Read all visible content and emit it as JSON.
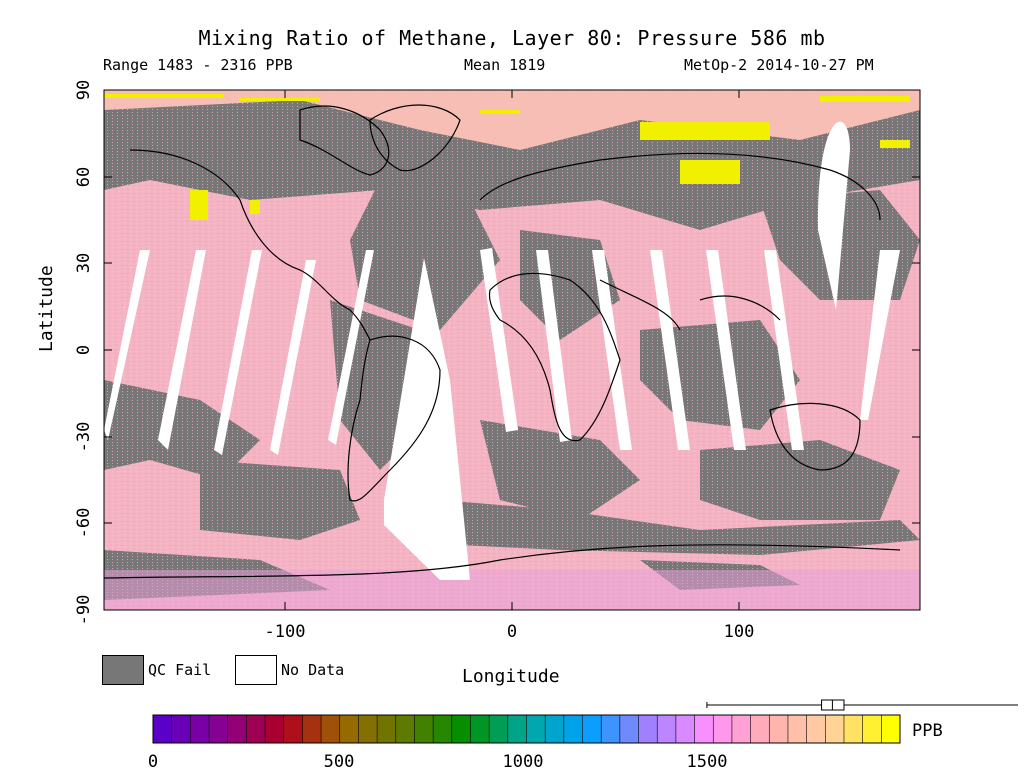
{
  "header": {
    "title": "Mixing Ratio of Methane, Layer 80: Pressure 586 mb",
    "range": "Range 1483 - 2316 PPB",
    "mean": "Mean 1819",
    "source": "MetOp-2 2014-10-27 PM"
  },
  "axes": {
    "ylabel": "Latitude",
    "xlabel": "Longitude",
    "yticks": [
      "90",
      "60",
      "30",
      "0",
      "-30",
      "-60",
      "-90"
    ],
    "xticks": [
      "-100",
      "0",
      "100"
    ]
  },
  "legend": {
    "qc_fail": "QC Fail",
    "no_data": "No Data",
    "qc_color": "#777777",
    "no_data_color": "#ffffff"
  },
  "colorbar": {
    "labels": [
      "0",
      "500",
      "1000",
      "1500"
    ],
    "unit": "PPB",
    "range": [
      0,
      2000
    ],
    "stops": [
      "#5a00c8",
      "#8a0090",
      "#b00020",
      "#9a6a00",
      "#5f7a00",
      "#009000",
      "#00a8a0",
      "#00a0ff",
      "#a080ff",
      "#ff90ff",
      "#ffb0b0",
      "#ffd0a0",
      "#ffff00"
    ]
  },
  "colors": {
    "field_pink": "#f4b4c4",
    "field_peach": "#f6c0b0",
    "field_magenta": "#e8a0d8",
    "qc_gray": "#777777",
    "high_yellow": "#f0f000",
    "coast": "#000000"
  },
  "map_data": {
    "projection": "equirectangular",
    "lon_range": [
      -180,
      180
    ],
    "lat_range": [
      -90,
      90
    ],
    "boxplot": {
      "min": 1483,
      "q1": 1790,
      "median": 1819,
      "q3": 1850,
      "max": 2316
    }
  }
}
